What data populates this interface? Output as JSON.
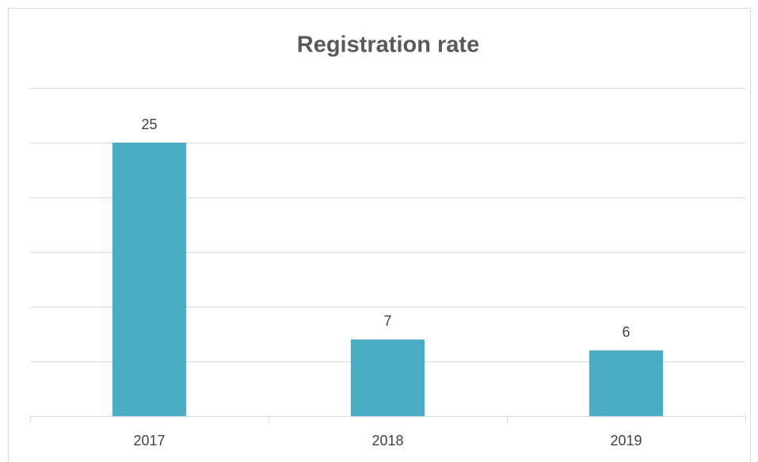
{
  "chart_data": {
    "type": "bar",
    "title": "Registration rate",
    "categories": [
      "2017",
      "2018",
      "2019"
    ],
    "values": [
      25,
      7,
      6
    ],
    "color": "#4bacc6",
    "ylim": [
      0,
      30
    ],
    "yticks": [
      0,
      5,
      10,
      15,
      20,
      25,
      30
    ],
    "grid": true
  }
}
